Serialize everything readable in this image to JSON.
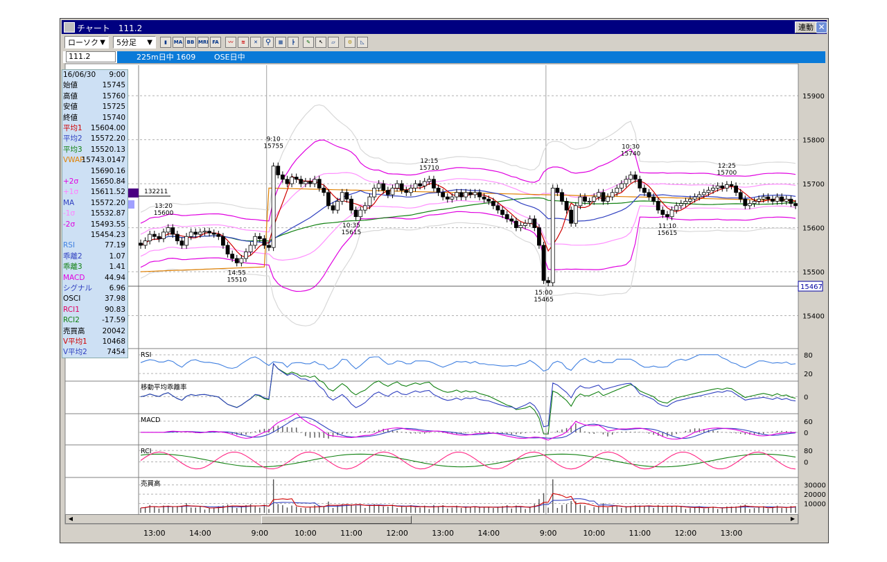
{
  "window": {
    "title": "チャート　111.2",
    "link_button": "連動",
    "close_glyph": "✕"
  },
  "toolbar": {
    "chart_type": "ローソク",
    "interval": "5分足",
    "icons": [
      "candle-icon",
      "ma-icon",
      "bb-icon",
      "mre-icon",
      "fa-icon",
      "line-tool-icon",
      "fib-icon",
      "cross-icon",
      "zoom-icon",
      "compare-icon",
      "bar-settings-icon",
      "pen-icon",
      "pointer-icon",
      "eraser-icon",
      "search-tool-icon",
      "fan-icon"
    ],
    "icon_texts": {
      "ma": "MA",
      "bb": "BB",
      "mre": "MRE",
      "fa": "FA"
    }
  },
  "tabs": {
    "symbol": "111.2",
    "title": "225m日中 1609",
    "session": "OSE日中"
  },
  "info_panel": [
    {
      "label": "16/06/30",
      "value": "9:00",
      "color": "#000000"
    },
    {
      "label": "始値",
      "value": "15745",
      "color": "#000000"
    },
    {
      "label": "高値",
      "value": "15760",
      "color": "#000000"
    },
    {
      "label": "安値",
      "value": "15725",
      "color": "#000000"
    },
    {
      "label": "終値",
      "value": "15740",
      "color": "#000000"
    },
    {
      "label": "平均1",
      "value": "15604.00",
      "color": "#d00000"
    },
    {
      "label": "平均2",
      "value": "15572.20",
      "color": "#3040c0"
    },
    {
      "label": "平均3",
      "value": "15520.13",
      "color": "#108010"
    },
    {
      "label": "VWAP",
      "value": "15743.0147",
      "color": "#e08000"
    },
    {
      "label": "",
      "value": "15690.16",
      "color": "#000000"
    },
    {
      "label": "+2σ",
      "value": "15650.84",
      "color": "#e000e0"
    },
    {
      "label": "+1σ",
      "value": "15611.52",
      "color": "#ff80ff"
    },
    {
      "label": "MA",
      "value": "15572.20",
      "color": "#3040c0"
    },
    {
      "label": "-1σ",
      "value": "15532.87",
      "color": "#ff80ff"
    },
    {
      "label": "-2σ",
      "value": "15493.55",
      "color": "#e000e0"
    },
    {
      "label": "",
      "value": "15454.23",
      "color": "#000000"
    },
    {
      "label": "RSI",
      "value": "77.19",
      "color": "#4080e0"
    },
    {
      "label": "乖離2",
      "value": "1.07",
      "color": "#3040c0"
    },
    {
      "label": "乖離3",
      "value": "1.41",
      "color": "#108010"
    },
    {
      "label": "MACD",
      "value": "44.94",
      "color": "#e000e0"
    },
    {
      "label": "シグナル",
      "value": "6.96",
      "color": "#3040c0"
    },
    {
      "label": "OSCI",
      "value": "37.98",
      "color": "#000000"
    },
    {
      "label": "RCI1",
      "value": "90.83",
      "color": "#e00060"
    },
    {
      "label": "RCI2",
      "value": "-17.59",
      "color": "#108010"
    },
    {
      "label": "売買高",
      "value": "20042",
      "color": "#000000"
    },
    {
      "label": "V平均1",
      "value": "10468",
      "color": "#d00000"
    },
    {
      "label": "V平均2",
      "value": "7454",
      "color": "#3040c0"
    }
  ],
  "price_axis": {
    "ticks": [
      "15900",
      "15800",
      "15700",
      "15600",
      "15500",
      "15400"
    ],
    "ylim": [
      15330,
      15960
    ],
    "current": "15467"
  },
  "marker_label": "132211",
  "annotations": [
    {
      "time": "13:20",
      "price": "15600",
      "idx": 5,
      "v": 15610,
      "above": true
    },
    {
      "time": "9:10",
      "price": "15755",
      "idx": 29,
      "v": 15762,
      "above": true
    },
    {
      "time": "14:55",
      "price": "15510",
      "idx": 21,
      "v": 15512,
      "above": false
    },
    {
      "time": "10:35",
      "price": "15615",
      "idx": 46,
      "v": 15620,
      "above": false
    },
    {
      "time": "12:15",
      "price": "15710",
      "idx": 63,
      "v": 15713,
      "above": true
    },
    {
      "time": "15:00",
      "price": "15465",
      "idx": 88,
      "v": 15467,
      "above": false
    },
    {
      "time": "10:30",
      "price": "15740",
      "idx": 107,
      "v": 15745,
      "above": true
    },
    {
      "time": "11:10",
      "price": "15615",
      "idx": 115,
      "v": 15618,
      "above": false
    },
    {
      "time": "12:25",
      "price": "15700",
      "idx": 128,
      "v": 15702,
      "above": true
    }
  ],
  "chart_data": {
    "type": "candlestick",
    "interval": "5分足",
    "close": [
      15560,
      15570,
      15585,
      15580,
      15575,
      15590,
      15600,
      15585,
      15570,
      15560,
      15580,
      15590,
      15585,
      15590,
      15592,
      15588,
      15585,
      15580,
      15560,
      15540,
      15530,
      15520,
      15530,
      15545,
      15560,
      15580,
      15575,
      15560,
      15555,
      15740,
      15720,
      15710,
      15700,
      15715,
      15710,
      15700,
      15705,
      15700,
      15710,
      15690,
      15680,
      15650,
      15640,
      15660,
      15680,
      15665,
      15640,
      15625,
      15640,
      15650,
      15670,
      15690,
      15700,
      15685,
      15675,
      15690,
      15700,
      15685,
      15680,
      15690,
      15700,
      15695,
      15705,
      15710,
      15690,
      15680,
      15670,
      15665,
      15670,
      15680,
      15670,
      15680,
      15675,
      15680,
      15670,
      15665,
      15660,
      15650,
      15640,
      15630,
      15620,
      15615,
      15600,
      15605,
      15610,
      15620,
      15600,
      15560,
      15480,
      15475,
      15690,
      15680,
      15660,
      15640,
      15610,
      15650,
      15670,
      15660,
      15660,
      15670,
      15680,
      15660,
      15670,
      15680,
      15690,
      15700,
      15710,
      15720,
      15710,
      15690,
      15680,
      15670,
      15660,
      15640,
      15630,
      15625,
      15640,
      15650,
      15655,
      15660,
      15665,
      15670,
      15675,
      15680,
      15685,
      15690,
      15695,
      15690,
      15698,
      15695,
      15680,
      15665,
      15650,
      15655,
      15660,
      15665,
      15670,
      15665,
      15660,
      15670,
      15660,
      15665,
      15655,
      15650
    ],
    "rsi_ticks": [
      "80",
      "20"
    ],
    "kairi_ticks": [
      "0"
    ],
    "macd_ticks": [
      "60",
      "0"
    ],
    "rci_ticks": [
      "80",
      "0"
    ],
    "volume_ticks": [
      "30000",
      "20000",
      "10000"
    ],
    "time_labels": [
      {
        "idx": 3,
        "label": "13:00"
      },
      {
        "idx": 13,
        "label": "14:00"
      },
      {
        "idx": 26,
        "label": "9:00"
      },
      {
        "idx": 36,
        "label": "10:00"
      },
      {
        "idx": 46,
        "label": "11:00"
      },
      {
        "idx": 56,
        "label": "12:00"
      },
      {
        "idx": 66,
        "label": "13:00"
      },
      {
        "idx": 76,
        "label": "14:00"
      },
      {
        "idx": 89,
        "label": "9:00"
      },
      {
        "idx": 99,
        "label": "10:00"
      },
      {
        "idx": 109,
        "label": "11:00"
      },
      {
        "idx": 119,
        "label": "12:00"
      },
      {
        "idx": 129,
        "label": "13:00"
      }
    ],
    "session_breaks": [
      28,
      89
    ],
    "sub_panels": [
      "RSI",
      "移動平均乖離率",
      "MACD",
      "RCI",
      "売買高"
    ]
  },
  "colors": {
    "band_outer": "#d8d8d8",
    "band2": "#e000e0",
    "band1": "#ff90ff",
    "ma1": "#d00000",
    "ma2": "#3040c0",
    "ma3": "#108010",
    "vwap": "#e08000",
    "rsi": "#4080e0",
    "rci1": "#ff2080",
    "rci2": "#108010"
  }
}
